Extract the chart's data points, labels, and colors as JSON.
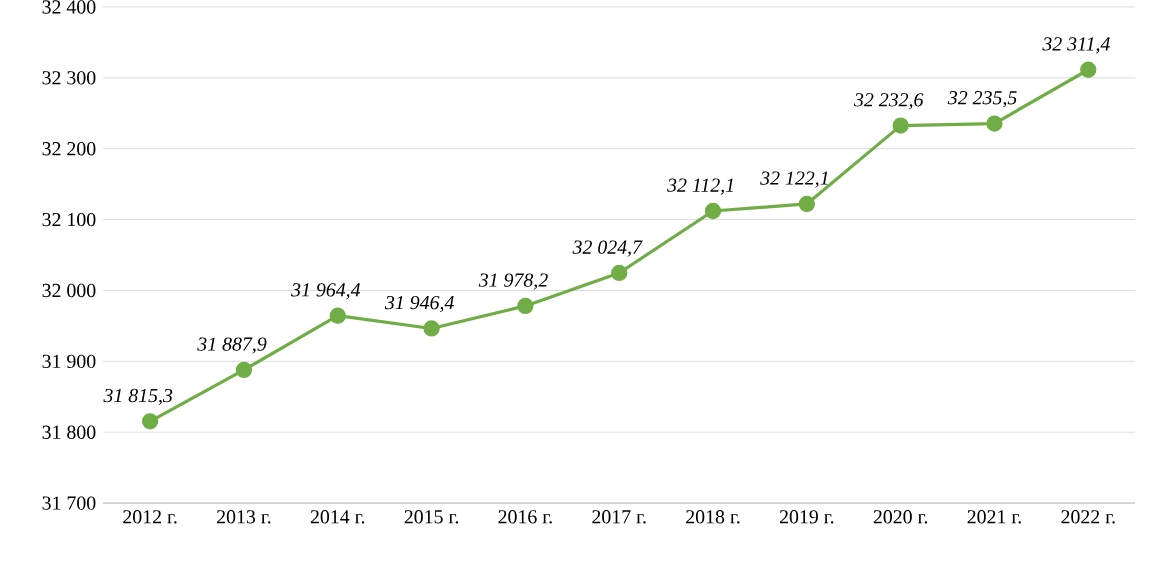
{
  "chart_data": {
    "type": "line",
    "categories": [
      "2012 г.",
      "2013 г.",
      "2014 г.",
      "2015 г.",
      "2016 г.",
      "2017 г.",
      "2018 г.",
      "2019 г.",
      "2020 г.",
      "2021 г.",
      "2022 г."
    ],
    "values": [
      31815.3,
      31887.9,
      31964.4,
      31946.4,
      31978.2,
      32024.7,
      32112.1,
      32122.1,
      32232.6,
      32235.5,
      32311.4
    ],
    "value_labels": [
      "31 815,3",
      "31 887,9",
      "31 964,4",
      "31 946,4",
      "31 978,2",
      "32 024,7",
      "32 112,1",
      "32 122,1",
      "32 232,6",
      "32 235,5",
      "32 311,4"
    ],
    "color": "#70ad47",
    "marker": "circle",
    "line_style": "solid",
    "grid": "y",
    "ylim": [
      31700,
      32400
    ],
    "yticks": [
      {
        "value": 31700,
        "label": "31 700"
      },
      {
        "value": 31800,
        "label": "31 800"
      },
      {
        "value": 31900,
        "label": "31 900"
      },
      {
        "value": 32000,
        "label": "32 000"
      },
      {
        "value": 32100,
        "label": "32 100"
      },
      {
        "value": 32200,
        "label": "32 200"
      },
      {
        "value": 32300,
        "label": "32 300"
      },
      {
        "value": 32400,
        "label": "32 400"
      }
    ]
  }
}
